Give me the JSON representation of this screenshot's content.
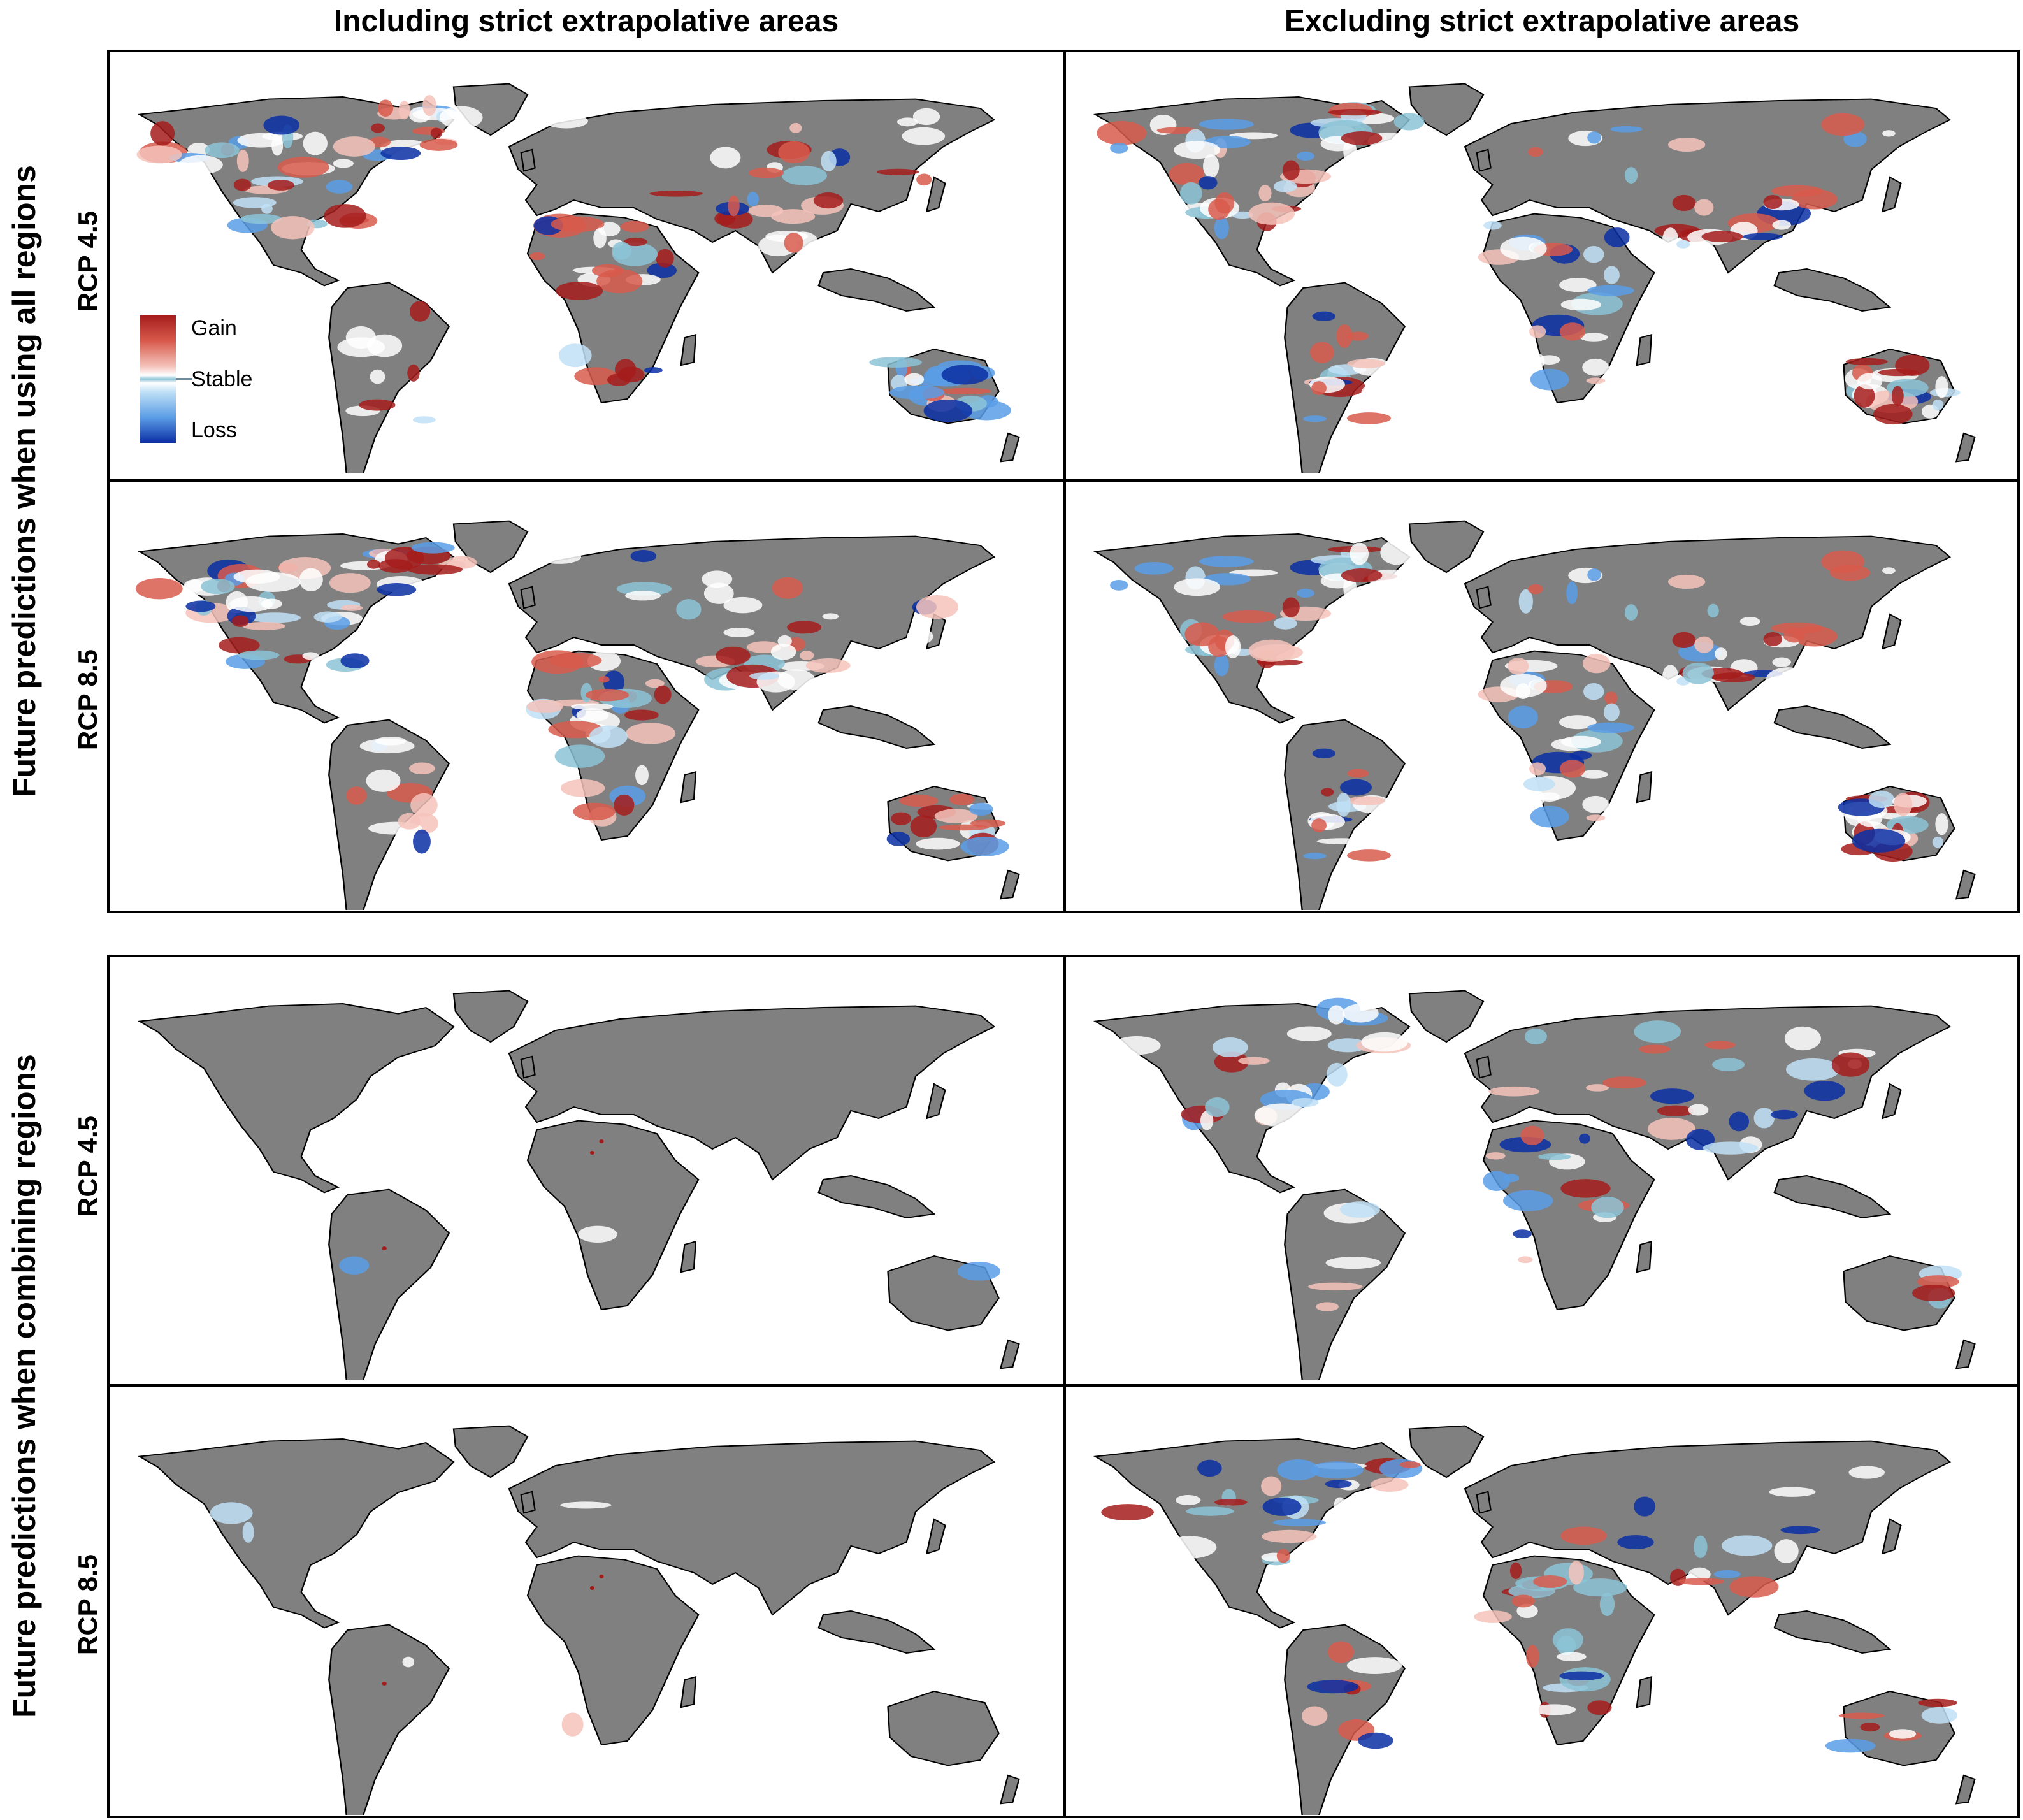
{
  "columns": {
    "left": "Including strict extrapolative areas",
    "right": "Excluding strict extrapolative areas"
  },
  "row_groups": {
    "top": "Future predictions when using all regions",
    "bottom": "Future predictions when combining regions"
  },
  "scenarios": [
    "RCP 4.5",
    "RCP 8.5",
    "RCP 4.5",
    "RCP 8.5"
  ],
  "legend": {
    "gain": "Gain",
    "stable": "Stable",
    "loss": "Loss"
  },
  "colors": {
    "land": "#808080",
    "gain_strong": "#a51c1c",
    "gain_light": "#f4c3bb",
    "stable": "#8cc4d6",
    "loss_light": "#bfe0f6",
    "loss_strong": "#0b2fa5",
    "coastline": "#000000"
  },
  "panels": [
    {
      "row": 1,
      "column": "left",
      "scenario": "RCP 4.5",
      "change_level": 0.85
    },
    {
      "row": 1,
      "column": "right",
      "scenario": "RCP 4.5",
      "change_level": 0.85
    },
    {
      "row": 2,
      "column": "left",
      "scenario": "RCP 8.5",
      "change_level": 0.9
    },
    {
      "row": 2,
      "column": "right",
      "scenario": "RCP 8.5",
      "change_level": 0.9
    },
    {
      "row": 3,
      "column": "left",
      "scenario": "RCP 4.5",
      "change_level": 0.02
    },
    {
      "row": 3,
      "column": "right",
      "scenario": "RCP 4.5",
      "change_level": 0.45
    },
    {
      "row": 4,
      "column": "left",
      "scenario": "RCP 8.5",
      "change_level": 0.03
    },
    {
      "row": 4,
      "column": "right",
      "scenario": "RCP 8.5",
      "change_level": 0.5
    }
  ]
}
